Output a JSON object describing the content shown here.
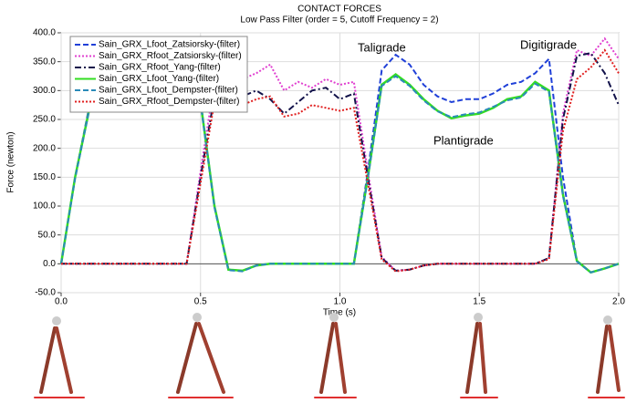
{
  "chart_data": {
    "type": "line",
    "title": "CONTACT FORCES",
    "subtitle": "Low Pass Filter (order = 5, Cutoff Frequency = 2)",
    "x_label": "Time (s)",
    "y_label": "Force (newton)",
    "annotations": [
      "Taligrade",
      "Digitigrade",
      "Plantigrade"
    ],
    "xlim": [
      0,
      2
    ],
    "ylim": [
      -50,
      400
    ],
    "xticks": [
      {
        "value": 0,
        "label": "0.0"
      },
      {
        "value": 0.5,
        "label": "0.5"
      },
      {
        "value": 1,
        "label": "1.0"
      },
      {
        "value": 1.5,
        "label": "1.5"
      },
      {
        "value": 2,
        "label": "2.0"
      }
    ],
    "yticks": [
      {
        "value": -50,
        "label": "-50.0"
      },
      {
        "value": 0,
        "label": "0.0"
      },
      {
        "value": 50,
        "label": "50.0"
      },
      {
        "value": 100,
        "label": "100.0"
      },
      {
        "value": 150,
        "label": "150.0"
      },
      {
        "value": 200,
        "label": "200.0"
      },
      {
        "value": 250,
        "label": "250.0"
      },
      {
        "value": 300,
        "label": "300.0"
      },
      {
        "value": 350,
        "label": "350.0"
      },
      {
        "value": 400,
        "label": "400.0"
      }
    ],
    "grid": true,
    "legend": "upper left",
    "x": [
      0,
      0.05,
      0.1,
      0.15,
      0.2,
      0.25,
      0.3,
      0.35,
      0.4,
      0.45,
      0.5,
      0.55,
      0.6,
      0.65,
      0.7,
      0.75,
      0.8,
      0.85,
      0.9,
      0.95,
      1,
      1.05,
      1.1,
      1.15,
      1.2,
      1.25,
      1.3,
      1.35,
      1.4,
      1.45,
      1.5,
      1.55,
      1.6,
      1.65,
      1.7,
      1.75,
      1.8,
      1.85,
      1.9,
      1.95,
      2
    ],
    "series": [
      {
        "name": "Sain_GRX_Lfoot_Zatsiorsky-(filter)",
        "color": "#2040d8",
        "style": "dashed",
        "values": [
          0,
          150,
          270,
          290,
          292,
          292,
          292,
          292,
          292,
          292,
          282,
          100,
          -10,
          -12,
          -3,
          0,
          0,
          0,
          0,
          0,
          0,
          0,
          160,
          335,
          362,
          345,
          310,
          290,
          280,
          285,
          285,
          295,
          310,
          315,
          330,
          355,
          150,
          5,
          -15,
          -8,
          0
        ]
      },
      {
        "name": "Sain_GRX_Rfoot_Zatsiorsky-(filter)",
        "color": "#e040d0",
        "style": "dotted",
        "values": [
          0,
          0,
          0,
          0,
          0,
          0,
          0,
          0,
          0,
          0,
          160,
          315,
          325,
          320,
          330,
          345,
          300,
          315,
          305,
          320,
          310,
          315,
          160,
          12,
          -12,
          -10,
          -3,
          0,
          0,
          0,
          0,
          0,
          0,
          0,
          0,
          10,
          260,
          370,
          360,
          390,
          355
        ]
      },
      {
        "name": "Sain_GRX_Rfoot_Yang-(filter)",
        "color": "#12124a",
        "style": "dashdot",
        "values": [
          0,
          0,
          0,
          0,
          0,
          0,
          0,
          0,
          0,
          0,
          150,
          290,
          300,
          290,
          300,
          285,
          260,
          280,
          300,
          305,
          285,
          295,
          150,
          10,
          -12,
          -10,
          -3,
          0,
          0,
          0,
          0,
          0,
          0,
          0,
          0,
          10,
          250,
          360,
          365,
          330,
          275
        ]
      },
      {
        "name": "Sain_GRX_Lfoot_Yang-(filter)",
        "color": "#33dd22",
        "style": "solid",
        "values": [
          0,
          150,
          265,
          285,
          290,
          290,
          290,
          290,
          290,
          290,
          280,
          100,
          -10,
          -12,
          -3,
          0,
          0,
          0,
          0,
          0,
          0,
          0,
          150,
          310,
          328,
          310,
          285,
          265,
          252,
          257,
          260,
          270,
          285,
          290,
          315,
          300,
          120,
          5,
          -15,
          -8,
          0
        ]
      },
      {
        "name": "Sain_GRX_Lfoot_Dempster-(filter)",
        "color": "#2a8ab8",
        "style": "dashed",
        "values": [
          0,
          148,
          264,
          284,
          289,
          289,
          289,
          289,
          289,
          289,
          279,
          98,
          -11,
          -13,
          -3,
          0,
          0,
          0,
          0,
          0,
          0,
          0,
          148,
          308,
          325,
          308,
          283,
          264,
          254,
          259,
          262,
          272,
          283,
          288,
          312,
          298,
          118,
          4,
          -15,
          -8,
          0
        ]
      },
      {
        "name": "Sain_GRX_Rfoot_Dempster-(filter)",
        "color": "#e02020",
        "style": "dotted",
        "values": [
          0,
          0,
          0,
          0,
          0,
          0,
          0,
          0,
          0,
          0,
          140,
          280,
          285,
          275,
          285,
          290,
          255,
          260,
          275,
          270,
          265,
          270,
          140,
          8,
          -13,
          -10,
          -3,
          0,
          0,
          0,
          0,
          0,
          0,
          0,
          0,
          8,
          230,
          320,
          340,
          370,
          330
        ]
      }
    ]
  }
}
